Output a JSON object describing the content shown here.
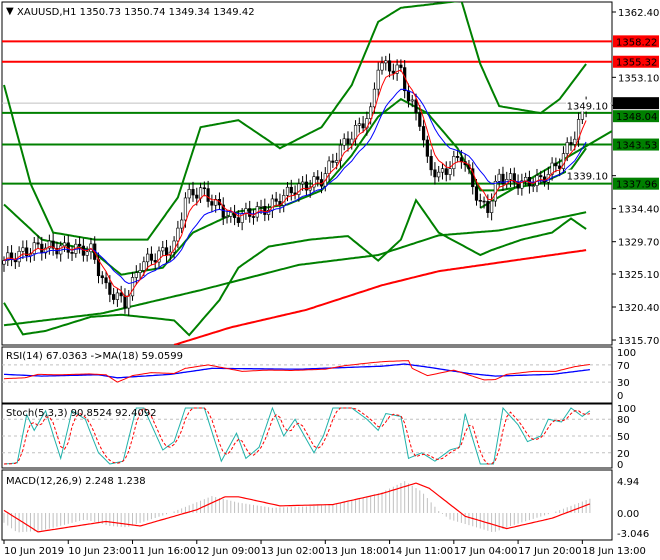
{
  "chart_data": {
    "type": "candlestick",
    "symbol_header": "XAUUSD,H1  1350.73 1350.74 1349.34 1349.42",
    "price_axis": {
      "min": 1315.7,
      "max": 1362.4,
      "ticks": [
        "1362.40",
        "1353.10",
        "1349.10",
        "1339.10",
        "1334.40",
        "1329.70",
        "1325.10",
        "1320.40",
        "1315.70"
      ]
    },
    "levels": [
      {
        "label": "1358.22",
        "value": 1358.22,
        "color": "#ff0000"
      },
      {
        "label": "1355.32",
        "value": 1355.32,
        "color": "#ff0000"
      },
      {
        "label": "1348.04",
        "value": 1348.04,
        "color": "#008000"
      },
      {
        "label": "1343.53",
        "value": 1343.53,
        "color": "#008000"
      },
      {
        "label": "1337.96",
        "value": 1337.96,
        "color": "#008000"
      }
    ],
    "current_price": {
      "label": "1349.42",
      "value": 1349.42,
      "color": "#000000"
    },
    "trendline": {
      "from": [
        126,
        1334.5
      ],
      "to": [
        161,
        1345.5
      ],
      "color": "#008000"
    },
    "close_points": [
      [
        0,
        1327
      ],
      [
        9,
        1329
      ],
      [
        23,
        1328.5
      ],
      [
        27,
        1323
      ],
      [
        32,
        1321
      ],
      [
        36,
        1326.5
      ],
      [
        45,
        1329
      ],
      [
        48,
        1336
      ],
      [
        52,
        1337
      ],
      [
        60,
        1333
      ],
      [
        70,
        1334.5
      ],
      [
        76,
        1337
      ],
      [
        84,
        1338.5
      ],
      [
        89,
        1343
      ],
      [
        97,
        1348
      ],
      [
        99,
        1355
      ],
      [
        105,
        1354
      ],
      [
        107,
        1350
      ],
      [
        110,
        1347
      ],
      [
        112,
        1341
      ],
      [
        115,
        1339
      ],
      [
        121,
        1342
      ],
      [
        126,
        1335
      ],
      [
        128,
        1334.5
      ],
      [
        131,
        1339
      ],
      [
        137,
        1338
      ],
      [
        142,
        1338.5
      ],
      [
        147,
        1341
      ],
      [
        151,
        1345
      ],
      [
        154,
        1349.4
      ]
    ],
    "bollinger_upper": [
      [
        0,
        1352
      ],
      [
        7,
        1338
      ],
      [
        13,
        1331
      ],
      [
        24,
        1330
      ],
      [
        38,
        1330
      ],
      [
        46,
        1336
      ],
      [
        52,
        1346
      ],
      [
        62,
        1347
      ],
      [
        73,
        1343
      ],
      [
        84,
        1346
      ],
      [
        92,
        1352
      ],
      [
        99,
        1361
      ],
      [
        105,
        1363
      ],
      [
        113,
        1363.5
      ],
      [
        121,
        1364
      ],
      [
        126,
        1355
      ],
      [
        131,
        1349
      ],
      [
        142,
        1348
      ],
      [
        147,
        1350
      ],
      [
        154,
        1355
      ]
    ],
    "bollinger_middle": [
      [
        0,
        1335
      ],
      [
        10,
        1330
      ],
      [
        23,
        1328.5
      ],
      [
        31,
        1325
      ],
      [
        42,
        1326
      ],
      [
        50,
        1331
      ],
      [
        62,
        1334
      ],
      [
        75,
        1335
      ],
      [
        84,
        1337
      ],
      [
        92,
        1342
      ],
      [
        99,
        1347.5
      ],
      [
        105,
        1350
      ],
      [
        112,
        1348
      ],
      [
        120,
        1343
      ],
      [
        126,
        1337
      ],
      [
        131,
        1337
      ],
      [
        142,
        1338
      ],
      [
        150,
        1340
      ],
      [
        154,
        1343
      ]
    ],
    "bollinger_lower": [
      [
        0,
        1321
      ],
      [
        5,
        1316.5
      ],
      [
        11,
        1317
      ],
      [
        23,
        1319
      ],
      [
        31,
        1319.3
      ],
      [
        45,
        1318.5
      ],
      [
        49,
        1316.4
      ],
      [
        57,
        1321.4
      ],
      [
        62,
        1326
      ],
      [
        70,
        1329
      ],
      [
        81,
        1330
      ],
      [
        91,
        1330.5
      ],
      [
        99,
        1327
      ],
      [
        105,
        1330
      ],
      [
        109,
        1335.6
      ],
      [
        115,
        1331
      ],
      [
        126,
        1327.8
      ],
      [
        129,
        1328.5
      ],
      [
        137,
        1330
      ],
      [
        145,
        1331
      ],
      [
        150,
        1333
      ],
      [
        154,
        1331.5
      ]
    ],
    "ma_100": [
      [
        0,
        1317.8
      ],
      [
        26,
        1319.5
      ],
      [
        52,
        1322.8
      ],
      [
        78,
        1326.4
      ],
      [
        99,
        1327.8
      ],
      [
        115,
        1330.6
      ],
      [
        131,
        1331.3
      ],
      [
        154,
        1333.9
      ]
    ],
    "ma_200": [
      [
        45,
        1315
      ],
      [
        60,
        1317.5
      ],
      [
        80,
        1320
      ],
      [
        100,
        1323.5
      ],
      [
        115,
        1325.5
      ],
      [
        154,
        1328.5
      ]
    ],
    "rsi": {
      "label": "RSI(14) 67.0363  ->MA(18) 59.0599",
      "ticks": [
        "100",
        "70",
        "30",
        "0"
      ],
      "rsi": [
        [
          0,
          38
        ],
        [
          5.6,
          40
        ],
        [
          9,
          48
        ],
        [
          14.6,
          47
        ],
        [
          22.5,
          49
        ],
        [
          27,
          47
        ],
        [
          30,
          30
        ],
        [
          34,
          45
        ],
        [
          39,
          52
        ],
        [
          45,
          50
        ],
        [
          48,
          62
        ],
        [
          54,
          70
        ],
        [
          60,
          60
        ],
        [
          63,
          55
        ],
        [
          70,
          58
        ],
        [
          76,
          57
        ],
        [
          85,
          60
        ],
        [
          90,
          68
        ],
        [
          97,
          75
        ],
        [
          101,
          78
        ],
        [
          107,
          80
        ],
        [
          108,
          62
        ],
        [
          112,
          45
        ],
        [
          119,
          58
        ],
        [
          127,
          35
        ],
        [
          130,
          36
        ],
        [
          133,
          48
        ],
        [
          140,
          55
        ],
        [
          146,
          55
        ],
        [
          151,
          66
        ],
        [
          155,
          71
        ]
      ],
      "ma": [
        [
          0,
          48
        ],
        [
          10,
          44
        ],
        [
          25,
          47
        ],
        [
          30,
          40
        ],
        [
          44,
          48
        ],
        [
          55,
          62
        ],
        [
          78,
          60
        ],
        [
          100,
          67
        ],
        [
          106,
          72
        ],
        [
          112,
          65
        ],
        [
          123,
          50
        ],
        [
          130,
          44
        ],
        [
          145,
          48
        ],
        [
          155,
          59
        ]
      ]
    },
    "stoch": {
      "label": "Stoch(5,3,3) 90.8524 92.4092",
      "ticks": [
        "100",
        "80",
        "50",
        "20",
        "0"
      ],
      "main": [
        [
          0,
          0
        ],
        [
          3.5,
          2
        ],
        [
          6,
          88
        ],
        [
          8,
          60
        ],
        [
          11,
          95
        ],
        [
          15,
          10
        ],
        [
          18,
          95
        ],
        [
          21.5,
          80
        ],
        [
          25,
          20
        ],
        [
          28,
          0
        ],
        [
          31.5,
          5
        ],
        [
          35,
          100
        ],
        [
          37,
          100
        ],
        [
          42,
          25
        ],
        [
          45,
          40
        ],
        [
          48,
          100
        ],
        [
          53,
          100
        ],
        [
          57.5,
          5
        ],
        [
          61.5,
          55
        ],
        [
          64,
          10
        ],
        [
          67.5,
          30
        ],
        [
          71,
          100
        ],
        [
          74,
          50
        ],
        [
          77,
          80
        ],
        [
          82,
          20
        ],
        [
          84.5,
          50
        ],
        [
          87,
          100
        ],
        [
          92,
          100
        ],
        [
          96,
          80
        ],
        [
          99,
          60
        ],
        [
          101,
          90
        ],
        [
          105,
          85
        ],
        [
          107,
          10
        ],
        [
          110.5,
          20
        ],
        [
          114,
          5
        ],
        [
          118,
          25
        ],
        [
          120.5,
          30
        ],
        [
          122,
          90
        ],
        [
          126,
          0
        ],
        [
          129.5,
          0
        ],
        [
          132,
          100
        ],
        [
          136,
          70
        ],
        [
          138.5,
          40
        ],
        [
          142,
          50
        ],
        [
          144,
          80
        ],
        [
          147.5,
          75
        ],
        [
          150,
          100
        ],
        [
          153,
          85
        ],
        [
          155,
          95
        ]
      ]
    },
    "macd": {
      "label": "MACD(12,26,9) 2.248 1.238",
      "ticks": [
        "4.94",
        "0.00",
        "-3.046"
      ],
      "signal": [
        [
          0,
          0.4
        ],
        [
          9,
          -2.9
        ],
        [
          27,
          -1.3
        ],
        [
          36,
          -2
        ],
        [
          51,
          0.5
        ],
        [
          58.5,
          2.5
        ],
        [
          62,
          2.5
        ],
        [
          73,
          1.1
        ],
        [
          87,
          1.3
        ],
        [
          100,
          3
        ],
        [
          109,
          4.6
        ],
        [
          112.5,
          3.8
        ],
        [
          122,
          -0.5
        ],
        [
          133,
          -2.4
        ],
        [
          145,
          -0.8
        ],
        [
          155,
          1.4
        ]
      ],
      "histogram": [
        [
          0,
          -1.5
        ],
        [
          3.5,
          -3
        ],
        [
          10,
          -2.7
        ],
        [
          21.5,
          -1
        ],
        [
          28,
          -2
        ],
        [
          32.5,
          -2.2
        ],
        [
          44,
          0
        ],
        [
          55,
          2.6
        ],
        [
          62,
          1.6
        ],
        [
          71,
          0.8
        ],
        [
          80,
          1
        ],
        [
          89,
          1.5
        ],
        [
          100,
          3.2
        ],
        [
          106,
          4.9
        ],
        [
          110.5,
          3.3
        ],
        [
          115,
          0.3
        ],
        [
          118,
          -1
        ],
        [
          129.5,
          -3
        ],
        [
          134,
          -2
        ],
        [
          145,
          0
        ],
        [
          155,
          2.2
        ]
      ]
    },
    "time_labels": [
      "10 Jun 2019",
      "10 Jun 23:00",
      "11 Jun 16:00",
      "12 Jun 09:00",
      "13 Jun 02:00",
      "13 Jun 18:00",
      "14 Jun 11:00",
      "17 Jun 04:00",
      "17 Jun 20:00",
      "18 Jun 13:00"
    ]
  }
}
